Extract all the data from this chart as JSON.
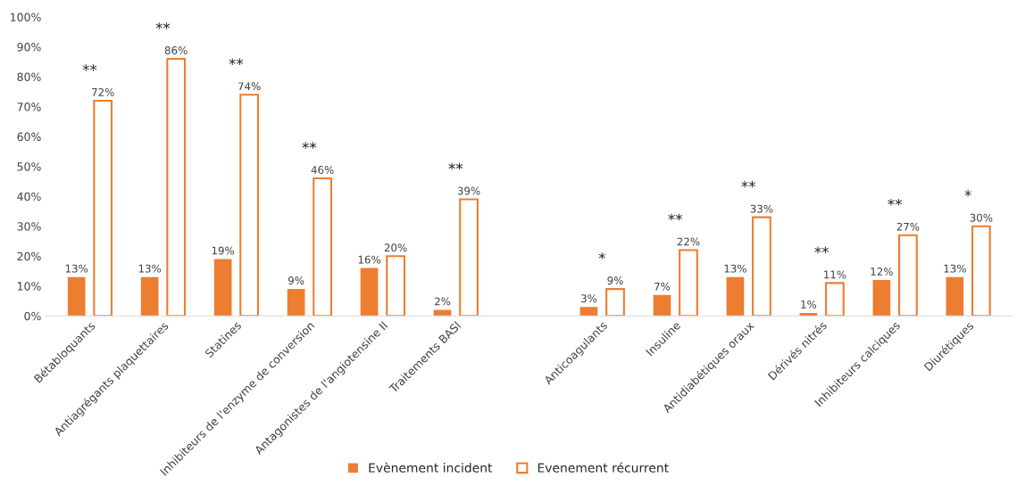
{
  "chart_data": {
    "type": "bar",
    "categories": [
      "Bétabloquants",
      "Antiagrégants plaquettaires",
      "Statines",
      "Inhibiteurs de l'enzyme de conversion",
      "Antagonistes de l'angiotensine II",
      "Traitements BASI",
      null,
      "Anticoagulants",
      "Insuline",
      "Antidiabétiques oraux",
      "Dérivés nitrés",
      "Inhibiteurs calciques",
      "Diurétiques"
    ],
    "series": [
      {
        "name": "Evènement incident",
        "color": "#ed7d31",
        "values": [
          13,
          13,
          19,
          9,
          16,
          2,
          null,
          3,
          7,
          13,
          1,
          12,
          13
        ],
        "value_labels": [
          "13%",
          "13%",
          "19%",
          "9%",
          "16%",
          "2%",
          null,
          "3%",
          "7%",
          "13%",
          "1%",
          "12%",
          "13%"
        ]
      },
      {
        "name": "Evenement récurrent",
        "color": "#ed7d31",
        "values": [
          72,
          86,
          74,
          46,
          20,
          39,
          null,
          9,
          22,
          33,
          11,
          27,
          30
        ],
        "value_labels": [
          "72%",
          "86%",
          "74%",
          "46%",
          "20%",
          "39%",
          null,
          "9%",
          "22%",
          "33%",
          "11%",
          "27%",
          "30%"
        ]
      }
    ],
    "ylim": [
      0,
      100
    ],
    "yticks": [
      {
        "value": 0,
        "label": "0%"
      },
      {
        "value": 10,
        "label": "10%"
      },
      {
        "value": 20,
        "label": "20%"
      },
      {
        "value": 30,
        "label": "30%"
      },
      {
        "value": 40,
        "label": "40%"
      },
      {
        "value": 50,
        "label": "50%"
      },
      {
        "value": 60,
        "label": "60%"
      },
      {
        "value": 70,
        "label": "70%"
      },
      {
        "value": 80,
        "label": "80%"
      },
      {
        "value": 90,
        "label": "90%"
      },
      {
        "value": 100,
        "label": "100%"
      }
    ],
    "grid": false,
    "legend": "bottom",
    "annotations": [
      "**",
      "**",
      "**",
      "**",
      null,
      "**",
      null,
      "*",
      "**",
      "**",
      "**",
      "**",
      "*"
    ]
  }
}
